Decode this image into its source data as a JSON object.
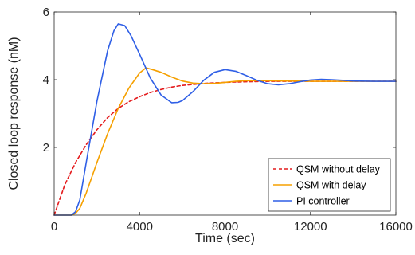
{
  "chart_data": {
    "type": "line",
    "title": "",
    "xlabel": "Time (sec)",
    "ylabel": "Closed loop response (nM)",
    "xlim": [
      0,
      16000
    ],
    "ylim": [
      0,
      6
    ],
    "xticks": [
      0,
      4000,
      8000,
      12000,
      16000
    ],
    "xtick_labels": [
      "0",
      "4000",
      "8000",
      "12000",
      "16000"
    ],
    "yticks": [
      2,
      4,
      6
    ],
    "ytick_labels": [
      "2",
      "4",
      "6"
    ],
    "grid": false,
    "legend_position": "bottom-right",
    "series": [
      {
        "name": "QSM without delay",
        "color": "#e41a1c",
        "style": "dashed",
        "x": [
          0,
          250,
          500,
          1000,
          1500,
          2000,
          2500,
          3000,
          3500,
          4000,
          4500,
          5000,
          5500,
          6000,
          6500,
          7000,
          8000,
          9000,
          10000,
          12000,
          14000,
          16000
        ],
        "y": [
          0,
          0.45,
          0.9,
          1.55,
          2.08,
          2.52,
          2.88,
          3.15,
          3.35,
          3.5,
          3.62,
          3.71,
          3.78,
          3.83,
          3.86,
          3.89,
          3.92,
          3.94,
          3.95,
          3.95,
          3.95,
          3.95
        ]
      },
      {
        "name": "QSM with delay",
        "color": "#f5a000",
        "style": "solid",
        "x": [
          0,
          800,
          1000,
          1200,
          1500,
          2000,
          2500,
          3000,
          3500,
          4000,
          4300,
          4600,
          5000,
          5500,
          6000,
          6500,
          7000,
          7500,
          8000,
          8500,
          9000,
          10000,
          11000,
          12000,
          13000,
          14000,
          15000,
          16000
        ],
        "y": [
          0,
          0,
          0.05,
          0.2,
          0.65,
          1.55,
          2.4,
          3.15,
          3.75,
          4.2,
          4.35,
          4.3,
          4.22,
          4.08,
          3.96,
          3.9,
          3.88,
          3.89,
          3.92,
          3.95,
          3.97,
          3.97,
          3.96,
          3.95,
          3.95,
          3.95,
          3.95,
          3.95
        ]
      },
      {
        "name": "PI controller",
        "color": "#2f5fe6",
        "style": "solid",
        "x": [
          0,
          600,
          800,
          1000,
          1200,
          1500,
          2000,
          2500,
          2800,
          3000,
          3300,
          3600,
          4000,
          4500,
          5000,
          5500,
          5800,
          6000,
          6500,
          7000,
          7500,
          8000,
          8500,
          9000,
          9500,
          10000,
          10500,
          11000,
          11500,
          12000,
          12500,
          13000,
          13500,
          14000,
          15000,
          16000
        ],
        "y": [
          0,
          0,
          0,
          0.1,
          0.45,
          1.55,
          3.35,
          4.85,
          5.45,
          5.65,
          5.6,
          5.3,
          4.75,
          4.05,
          3.55,
          3.32,
          3.33,
          3.38,
          3.65,
          3.98,
          4.22,
          4.3,
          4.25,
          4.12,
          3.98,
          3.88,
          3.85,
          3.88,
          3.94,
          3.99,
          4.01,
          4.0,
          3.98,
          3.96,
          3.95,
          3.95
        ]
      }
    ]
  }
}
